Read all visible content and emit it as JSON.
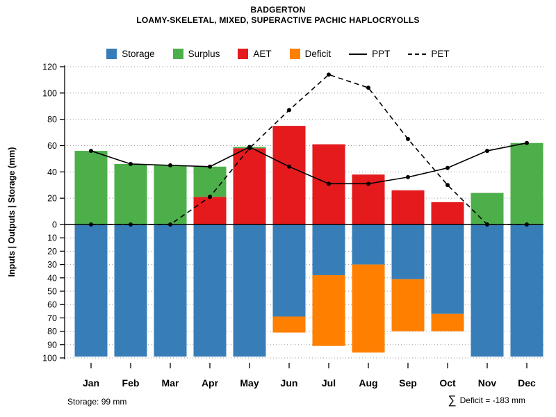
{
  "header": {
    "title": "BADGERTON",
    "subtitle": "LOAMY-SKELETAL, MIXED, SUPERACTIVE PACHIC HAPLOCRYOLLS"
  },
  "legend": {
    "items": [
      {
        "key": "storage",
        "label": "Storage",
        "swatch": "square"
      },
      {
        "key": "surplus",
        "label": "Surplus",
        "swatch": "square"
      },
      {
        "key": "aet",
        "label": "AET",
        "swatch": "square"
      },
      {
        "key": "deficit",
        "label": "Deficit",
        "swatch": "square"
      },
      {
        "key": "ppt",
        "label": "PPT",
        "swatch": "solid-line"
      },
      {
        "key": "pet",
        "label": "PET",
        "swatch": "dashed-line"
      }
    ]
  },
  "colors": {
    "storage": "#377EB8",
    "surplus": "#4DAF4A",
    "aet": "#E41A1C",
    "deficit": "#FF7F00",
    "ppt": "#000000",
    "pet": "#000000",
    "grid": "#9a9a9a",
    "axis": "#000000"
  },
  "chart_data": {
    "type": "bar",
    "subtype": "monthly water balance: stacked bars above/below zero plus PPT (solid) and PET (dashed) lines",
    "months": [
      "Jan",
      "Feb",
      "Mar",
      "Apr",
      "May",
      "Jun",
      "Jul",
      "Aug",
      "Sep",
      "Oct",
      "Nov",
      "Dec"
    ],
    "series": [
      {
        "name": "Surplus",
        "axis": "up-bar",
        "values": [
          56,
          46,
          45,
          23,
          1,
          0,
          0,
          0,
          0,
          0,
          24,
          62
        ]
      },
      {
        "name": "AET",
        "axis": "up-bar",
        "values": [
          0,
          0,
          0,
          21,
          58,
          75,
          61,
          38,
          26,
          17,
          0,
          0
        ]
      },
      {
        "name": "Storage",
        "axis": "down-bar",
        "values": [
          99,
          99,
          99,
          99,
          99,
          69,
          38,
          30,
          41,
          67,
          99,
          99
        ]
      },
      {
        "name": "Deficit",
        "axis": "down-bar",
        "values": [
          0,
          0,
          0,
          0,
          0,
          12,
          53,
          66,
          39,
          13,
          0,
          0
        ]
      },
      {
        "name": "PPT",
        "axis": "up-line-solid",
        "values": [
          56,
          46,
          45,
          44,
          59,
          44,
          31,
          31,
          36,
          43,
          56,
          62
        ]
      },
      {
        "name": "PET",
        "axis": "up-line-dashed",
        "values": [
          0,
          0,
          0,
          21,
          58,
          87,
          114,
          104,
          65,
          30,
          0,
          0
        ]
      }
    ],
    "ylabel": "Inputs | Outputs | Storage  (mm)",
    "y_upper_ticks": [
      0,
      20,
      40,
      60,
      80,
      100,
      120
    ],
    "y_lower_ticks": [
      10,
      20,
      30,
      40,
      50,
      60,
      70,
      80,
      90,
      100
    ],
    "ylim_upper": [
      0,
      120
    ],
    "ylim_lower": [
      0,
      100
    ],
    "grid": "dotted horizontal gridlines at every tick",
    "legend_position": "top center"
  },
  "footer": {
    "storage_note": "Storage: 99 mm",
    "sigma": "∑",
    "deficit_note": "Deficit = -183 mm"
  }
}
